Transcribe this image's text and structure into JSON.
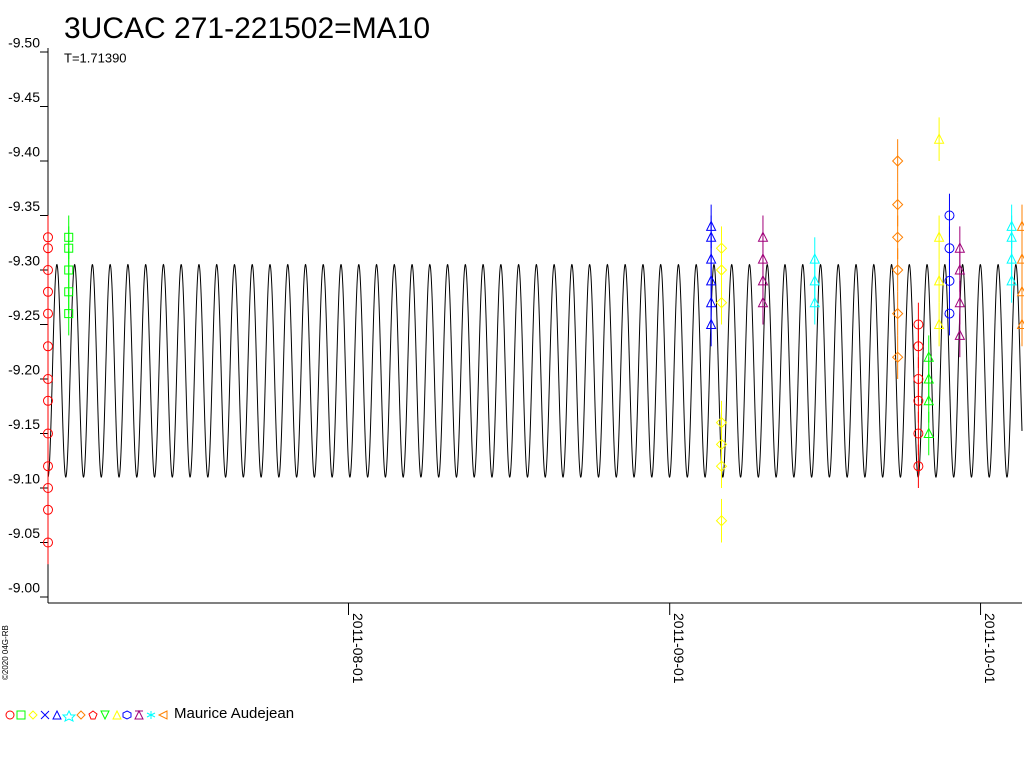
{
  "chart_data": {
    "type": "lightcurve",
    "title": "3UCAC 271-221502=MA10",
    "subtitle": "T=1.71390",
    "credit": "©2020 04G-RB",
    "legend_text": "Maurice Audejean",
    "xlim": [
      "2011-07-03",
      "2011-10-05"
    ],
    "xticks": [
      "2011-08-01",
      "2011-09-01",
      "2011-10-01"
    ],
    "ylim": [
      -9.0,
      -9.5
    ],
    "yticks": [
      {
        "value": -9.5,
        "label": "-9.50"
      },
      {
        "value": -9.45,
        "label": "-9.45"
      },
      {
        "value": -9.4,
        "label": "-9.40"
      },
      {
        "value": -9.35,
        "label": "-9.35"
      },
      {
        "value": -9.3,
        "label": "-9.30"
      },
      {
        "value": -9.25,
        "label": "-9.25"
      },
      {
        "value": -9.2,
        "label": "-9.20"
      },
      {
        "value": -9.15,
        "label": "-9.15"
      },
      {
        "value": -9.1,
        "label": "-9.10"
      },
      {
        "value": -9.05,
        "label": "-9.05"
      },
      {
        "value": -9.0,
        "label": "-9.00"
      }
    ],
    "curve": {
      "period": 1.7139,
      "min": -9.305,
      "max": -9.11,
      "color": "#000000"
    },
    "clusters": [
      {
        "color": "#ff0000",
        "marker": "circle",
        "error": 0.02,
        "x": [
          "2011-07-03",
          "2011-07-03",
          "2011-07-03",
          "2011-07-03",
          "2011-07-03",
          "2011-07-03",
          "2011-07-03",
          "2011-07-03",
          "2011-07-03",
          "2011-07-03",
          "2011-07-03",
          "2011-07-03",
          "2011-07-03"
        ],
        "values": [
          -9.05,
          -9.08,
          -9.1,
          -9.12,
          -9.15,
          -9.18,
          -9.2,
          -9.23,
          -9.26,
          -9.28,
          -9.3,
          -9.32,
          -9.33
        ]
      },
      {
        "color": "#00ff00",
        "marker": "square",
        "error": 0.02,
        "x": [
          "2011-07-05",
          "2011-07-05",
          "2011-07-05",
          "2011-07-05",
          "2011-07-05"
        ],
        "values": [
          -9.26,
          -9.28,
          -9.3,
          -9.32,
          -9.33
        ]
      },
      {
        "color": "#0000ff",
        "marker": "triangle",
        "error": 0.02,
        "x": [
          "2011-09-05",
          "2011-09-05",
          "2011-09-05",
          "2011-09-05",
          "2011-09-05",
          "2011-09-05"
        ],
        "values": [
          -9.25,
          -9.27,
          -9.29,
          -9.31,
          -9.33,
          -9.34
        ]
      },
      {
        "color": "#ffff00",
        "marker": "diamond",
        "error": 0.02,
        "x": [
          "2011-09-06",
          "2011-09-06",
          "2011-09-06",
          "2011-09-06",
          "2011-09-06",
          "2011-09-06",
          "2011-09-06"
        ],
        "values": [
          -9.07,
          -9.12,
          -9.14,
          -9.16,
          -9.27,
          -9.3,
          -9.32
        ]
      },
      {
        "color": "#a0007a",
        "marker": "triangle",
        "error": 0.02,
        "x": [
          "2011-09-10",
          "2011-09-10",
          "2011-09-10",
          "2011-09-10"
        ],
        "values": [
          -9.27,
          -9.29,
          -9.31,
          -9.33
        ]
      },
      {
        "color": "#00ffff",
        "marker": "triangle",
        "error": 0.02,
        "x": [
          "2011-09-15",
          "2011-09-15",
          "2011-09-15"
        ],
        "values": [
          -9.27,
          -9.29,
          -9.31
        ]
      },
      {
        "color": "#ff8000",
        "marker": "diamond",
        "error": 0.02,
        "x": [
          "2011-09-23",
          "2011-09-23",
          "2011-09-23",
          "2011-09-23",
          "2011-09-23",
          "2011-09-23"
        ],
        "values": [
          -9.22,
          -9.26,
          -9.3,
          -9.33,
          -9.36,
          -9.4
        ]
      },
      {
        "color": "#ff0000",
        "marker": "circle",
        "error": 0.02,
        "x": [
          "2011-09-25",
          "2011-09-25",
          "2011-09-25",
          "2011-09-25",
          "2011-09-25",
          "2011-09-25"
        ],
        "values": [
          -9.12,
          -9.15,
          -9.18,
          -9.2,
          -9.23,
          -9.25
        ]
      },
      {
        "color": "#00ff00",
        "marker": "triangle",
        "error": 0.02,
        "x": [
          "2011-09-26",
          "2011-09-26",
          "2011-09-26",
          "2011-09-26"
        ],
        "values": [
          -9.15,
          -9.18,
          -9.2,
          -9.22
        ]
      },
      {
        "color": "#ffff00",
        "marker": "triangle",
        "error": 0.02,
        "x": [
          "2011-09-27",
          "2011-09-27",
          "2011-09-27",
          "2011-09-27"
        ],
        "values": [
          -9.25,
          -9.29,
          -9.33,
          -9.42
        ]
      },
      {
        "color": "#0000ff",
        "marker": "circle",
        "error": 0.02,
        "x": [
          "2011-09-28",
          "2011-09-28",
          "2011-09-28",
          "2011-09-28"
        ],
        "values": [
          -9.26,
          -9.29,
          -9.32,
          -9.35
        ]
      },
      {
        "color": "#a0007a",
        "marker": "triangle",
        "error": 0.02,
        "x": [
          "2011-09-29",
          "2011-09-29",
          "2011-09-29",
          "2011-09-29"
        ],
        "values": [
          -9.24,
          -9.27,
          -9.3,
          -9.32
        ]
      },
      {
        "color": "#00ffff",
        "marker": "triangle",
        "error": 0.02,
        "x": [
          "2011-10-04",
          "2011-10-04",
          "2011-10-04",
          "2011-10-04"
        ],
        "values": [
          -9.29,
          -9.31,
          -9.33,
          -9.34
        ]
      },
      {
        "color": "#ff8000",
        "marker": "triangle",
        "error": 0.02,
        "x": [
          "2011-10-05",
          "2011-10-05",
          "2011-10-05",
          "2011-10-05"
        ],
        "values": [
          -9.25,
          -9.28,
          -9.31,
          -9.34
        ]
      }
    ]
  }
}
